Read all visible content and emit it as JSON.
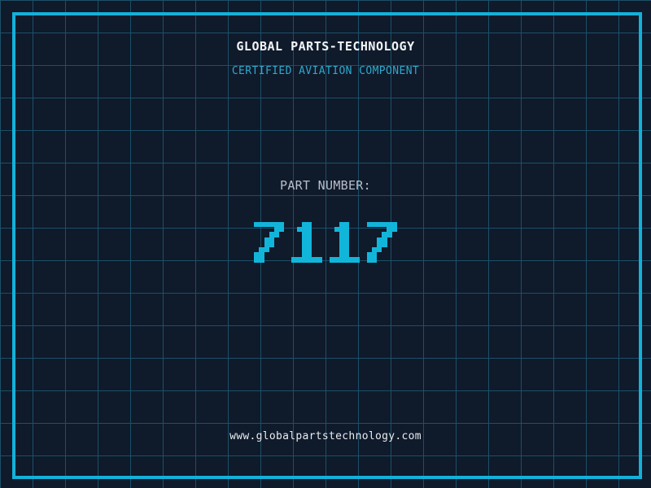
{
  "colors": {
    "background": "#0f1a2b",
    "grid_line": "#1c5068",
    "frame": "#13b1d9",
    "title": "#f2f5f7",
    "subtitle": "#2fa8cb",
    "part_label": "#b9bfc9",
    "part_value": "#12b5da",
    "url": "#e9ecef"
  },
  "header": {
    "title": "GLOBAL PARTS-TECHNOLOGY",
    "subtitle": "CERTIFIED AVIATION COMPONENT"
  },
  "part": {
    "label": "PART NUMBER:",
    "value": "7117"
  },
  "footer": {
    "url": "www.globalpartstechnology.com"
  }
}
